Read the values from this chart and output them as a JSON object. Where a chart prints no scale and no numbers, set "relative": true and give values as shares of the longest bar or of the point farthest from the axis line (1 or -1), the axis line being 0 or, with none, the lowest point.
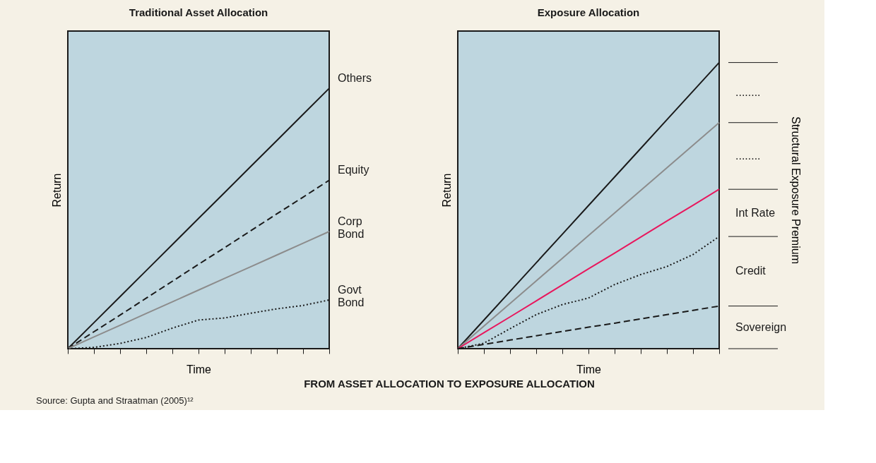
{
  "chart_data": [
    {
      "type": "line",
      "title": "Traditional Asset Allocation",
      "xlabel": "Time",
      "ylabel": "Return",
      "relative": true,
      "grid": false,
      "marker": "none",
      "categories": [
        null,
        null,
        null,
        null,
        null,
        null,
        null,
        null,
        null,
        null,
        null
      ],
      "series": [
        {
          "name": "Others",
          "color": "#1a1a1a",
          "line_style": "solid",
          "values": [
            0,
            0.1,
            0.2,
            0.3,
            0.4,
            0.5,
            0.6,
            0.7,
            0.8,
            0.9,
            1.0
          ]
        },
        {
          "name": "Equity",
          "color": "#1a1a1a",
          "line_style": "dashed",
          "values": [
            0,
            0.065,
            0.129,
            0.194,
            0.259,
            0.324,
            0.388,
            0.453,
            0.518,
            0.582,
            0.647
          ]
        },
        {
          "name": "Corp Bond",
          "color": "#8c8c8c",
          "line_style": "solid",
          "values": [
            0,
            0.045,
            0.09,
            0.135,
            0.18,
            0.225,
            0.27,
            0.315,
            0.36,
            0.405,
            0.45
          ]
        },
        {
          "name": "Govt Bond",
          "color": "#1a1a1a",
          "line_style": "dotted",
          "values": [
            0,
            0.005,
            0.02,
            0.043,
            0.079,
            0.11,
            0.118,
            0.136,
            0.153,
            0.166,
            0.187
          ]
        }
      ],
      "annotations": [
        "FROM ASSET ALLOCATION TO EXPOSURE ALLOCATION",
        "Source: Gupta and Straatman (2005)¹²"
      ]
    },
    {
      "type": "line",
      "title": "Exposure Allocation",
      "xlabel": "Time",
      "ylabel": "Return",
      "y2label": "Structural Exposure Premium",
      "relative": true,
      "grid": false,
      "marker": "none",
      "categories": [
        null,
        null,
        null,
        null,
        null,
        null,
        null,
        null,
        null,
        null,
        null
      ],
      "series": [
        {
          "color": "#1a1a1a",
          "line_style": "solid",
          "values": [
            0,
            0.1,
            0.2,
            0.3,
            0.4,
            0.5,
            0.6,
            0.7,
            0.8,
            0.9,
            1.0
          ]
        },
        {
          "color": "#8c8c8c",
          "line_style": "solid",
          "values": [
            0,
            0.079,
            0.158,
            0.237,
            0.316,
            0.395,
            0.474,
            0.553,
            0.632,
            0.711,
            0.79
          ]
        },
        {
          "color": "#e8175d",
          "line_style": "solid",
          "values": [
            0,
            0.056,
            0.111,
            0.167,
            0.223,
            0.279,
            0.334,
            0.39,
            0.446,
            0.501,
            0.557
          ]
        },
        {
          "color": "#1a1a1a",
          "line_style": "dotted",
          "values": [
            0,
            0.019,
            0.07,
            0.119,
            0.154,
            0.177,
            0.224,
            0.259,
            0.287,
            0.329,
            0.392
          ]
        },
        {
          "color": "#1a1a1a",
          "line_style": "dashed",
          "values": [
            0,
            0.015,
            0.03,
            0.045,
            0.06,
            0.075,
            0.089,
            0.104,
            0.119,
            0.134,
            0.149
          ]
        }
      ],
      "annotations": [
        "........",
        "........",
        "Int Rate",
        "Credit",
        "Sovereign"
      ]
    }
  ]
}
